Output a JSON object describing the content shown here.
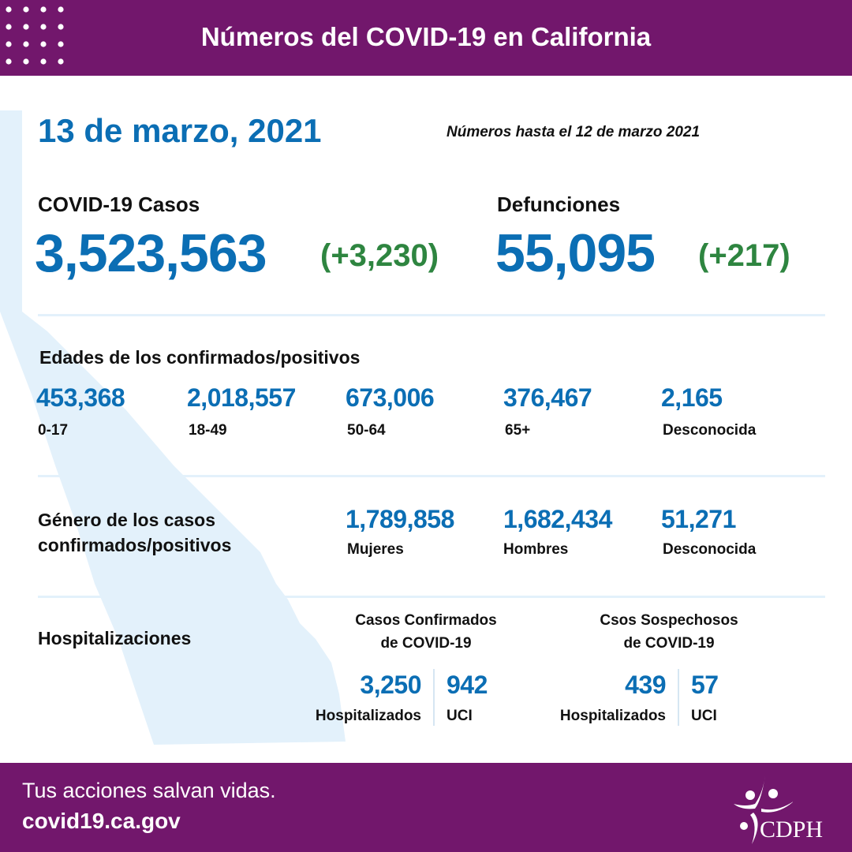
{
  "header": {
    "title": "Números del COVID-19 en California"
  },
  "date": "13 de marzo, 2021",
  "note": "Números hasta el 12 de marzo 2021",
  "cases": {
    "label": "COVID-19 Casos",
    "value": "3,523,563",
    "change": "(+3,230)"
  },
  "deaths": {
    "label": "Defunciones",
    "value": "55,095",
    "change": "(+217)"
  },
  "ages": {
    "title": "Edades de los confirmados/positivos",
    "items": [
      {
        "value": "453,368",
        "label": "0-17"
      },
      {
        "value": "2,018,557",
        "label": "18-49"
      },
      {
        "value": "673,006",
        "label": "50-64"
      },
      {
        "value": "376,467",
        "label": "65+"
      },
      {
        "value": "2,165",
        "label": "Desconocida"
      }
    ]
  },
  "gender": {
    "title_1": "Género de los casos",
    "title_2": "confirmados/positivos",
    "items": [
      {
        "value": "1,789,858",
        "label": "Mujeres"
      },
      {
        "value": "1,682,434",
        "label": "Hombres"
      },
      {
        "value": "51,271",
        "label": "Desconocida"
      }
    ]
  },
  "hosp": {
    "title": "Hospitalizaciones",
    "confirmed": {
      "title_1": "Casos Confirmados",
      "title_2": "de COVID-19",
      "hospitalized": "3,250",
      "hospitalized_label": "Hospitalizados",
      "icu": "942",
      "icu_label": "UCI"
    },
    "suspected": {
      "title_1": "Csos Sospechosos",
      "title_2": "de COVID-19",
      "hospitalized": "439",
      "hospitalized_label": "Hospitalizados",
      "icu": "57",
      "icu_label": "UCI"
    }
  },
  "footer": {
    "tagline": "Tus acciones salvan vidas.",
    "url": "covid19.ca.gov",
    "logo_text": "CDPH"
  },
  "colors": {
    "purple": "#72176c",
    "blue": "#0b6eb4",
    "green": "#2e8540",
    "map": "#e3f1fb"
  }
}
